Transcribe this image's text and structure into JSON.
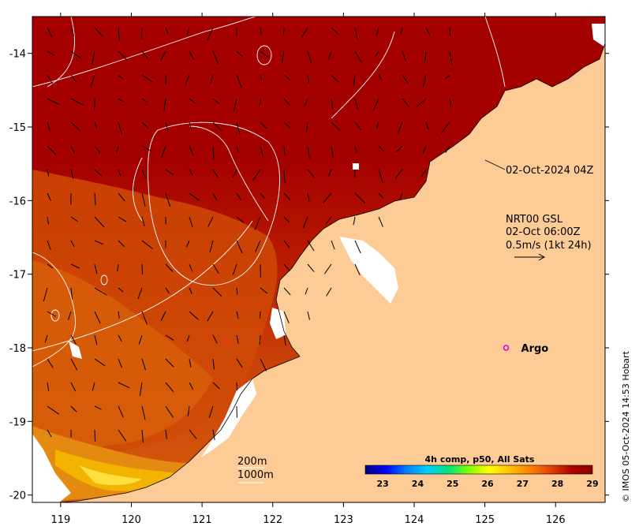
{
  "axes": {
    "x_ticks": [
      119,
      120,
      121,
      122,
      123,
      124,
      125,
      126
    ],
    "y_ticks": [
      -14,
      -15,
      -16,
      -17,
      -18,
      -19,
      -20
    ],
    "x_range": [
      118.6,
      126.7
    ],
    "y_range": [
      -20.1,
      -13.5
    ]
  },
  "annotations": {
    "sst_time": "02-Oct-2024 04Z",
    "current_source": "NRT00 GSL",
    "current_time": "02-Oct 06:00Z",
    "current_scale": "0.5m/s (1kt 24h)"
  },
  "argo": {
    "label": "Argo",
    "lon": 125.3,
    "lat": -18.0,
    "marker_color": "#e000e0"
  },
  "contours": {
    "label_200m": "200m",
    "label_1000m": "1000m"
  },
  "colorbar": {
    "title": "4h comp, p50, All Sats",
    "ticks": [
      "23",
      "24",
      "25",
      "26",
      "27",
      "28",
      "29"
    ],
    "min": 22.5,
    "max": 29,
    "stops": [
      "#000080",
      "#0000ff",
      "#0080ff",
      "#00d0ff",
      "#00e080",
      "#80ff00",
      "#ffff00",
      "#ffc000",
      "#ff8000",
      "#e04000",
      "#b00000",
      "#8b0000"
    ]
  },
  "colors": {
    "land": "#fdcb95",
    "warm_sea": "#a90000",
    "mid_sea": "#c43a05",
    "cool_sea": "#e07010",
    "no_data": "#ffffff",
    "contour": "#ffffff"
  },
  "credit": "© IMOS 05-Oct-2024 14:53 Hobart"
}
